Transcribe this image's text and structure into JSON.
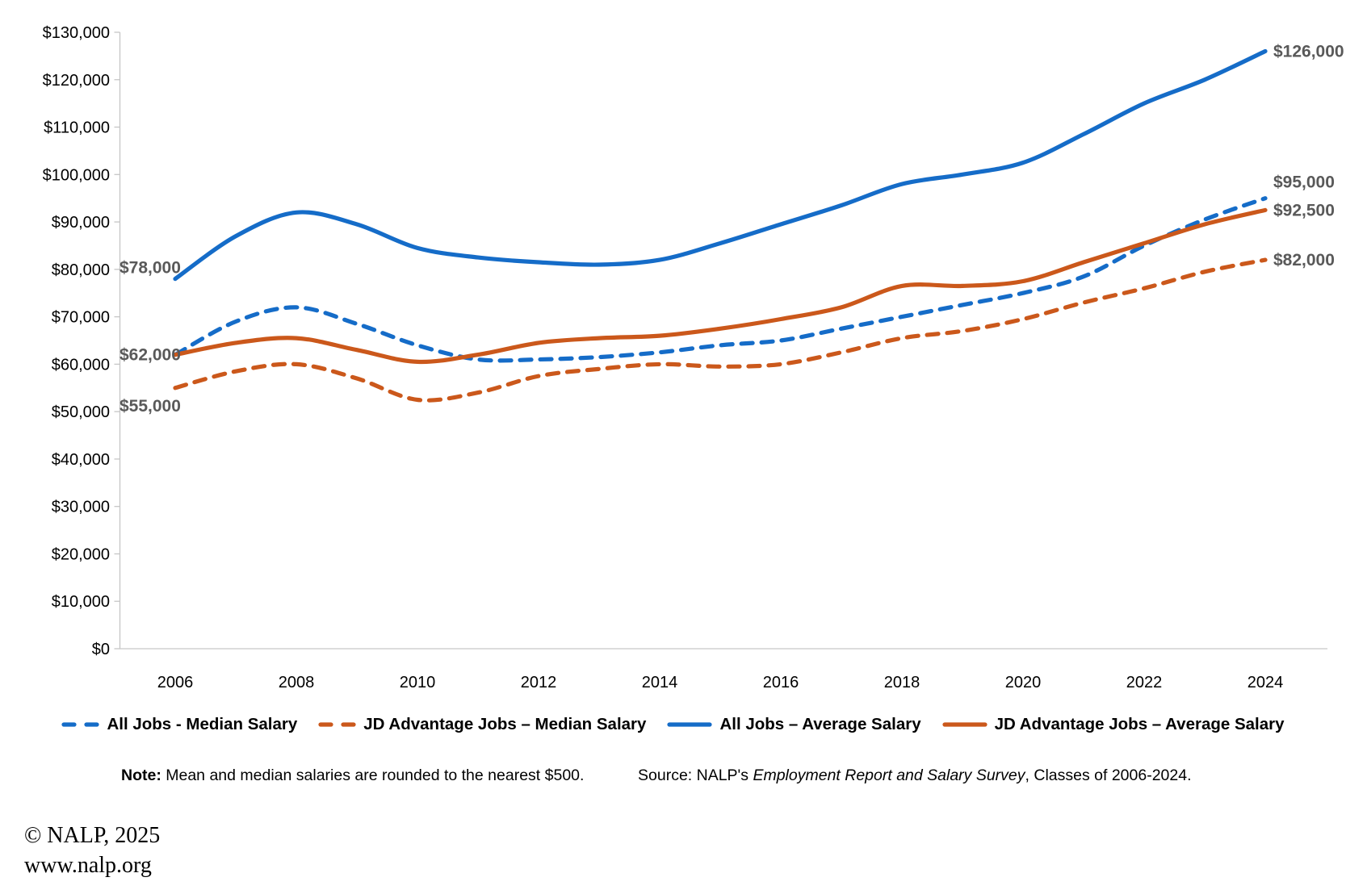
{
  "chart_data": {
    "type": "line",
    "title": "",
    "x": [
      2006,
      2007,
      2008,
      2009,
      2010,
      2011,
      2012,
      2013,
      2014,
      2015,
      2016,
      2017,
      2018,
      2019,
      2020,
      2021,
      2022,
      2023,
      2024
    ],
    "x_tick_labels": [
      "2006",
      "2008",
      "2010",
      "2012",
      "2014",
      "2016",
      "2018",
      "2020",
      "2022",
      "2024"
    ],
    "y_tick_labels": [
      "$0",
      "$10,000",
      "$20,000",
      "$30,000",
      "$40,000",
      "$50,000",
      "$60,000",
      "$70,000",
      "$80,000",
      "$90,000",
      "$100,000",
      "$110,000",
      "$120,000",
      "$130,000"
    ],
    "ylim": [
      0,
      130000
    ],
    "grid": false,
    "legend_position": "bottom",
    "series": [
      {
        "name": "All Jobs - Median Salary",
        "style": "dashed",
        "color": "#156CC8",
        "values": [
          62000,
          69000,
          72000,
          68500,
          64000,
          61000,
          61000,
          61500,
          62500,
          64000,
          65000,
          67500,
          70000,
          72500,
          75000,
          78500,
          85000,
          90500,
          95000
        ]
      },
      {
        "name": "JD Advantage Jobs – Median Salary",
        "style": "dashed",
        "color": "#CB581B",
        "values": [
          55000,
          58500,
          60000,
          57000,
          52500,
          54000,
          57500,
          59000,
          60000,
          59500,
          60000,
          62500,
          65500,
          67000,
          69500,
          73000,
          76000,
          79500,
          82000
        ]
      },
      {
        "name": "All Jobs – Average Salary",
        "style": "solid",
        "color": "#156CC8",
        "values": [
          78000,
          87000,
          92000,
          89500,
          84500,
          82500,
          81500,
          81000,
          82000,
          85500,
          89500,
          93500,
          98000,
          100000,
          102500,
          108500,
          115000,
          120000,
          126000
        ]
      },
      {
        "name": "JD Advantage Jobs – Average Salary",
        "style": "solid",
        "color": "#CB581B",
        "values": [
          62000,
          64500,
          65500,
          63000,
          60500,
          62000,
          64500,
          65500,
          66000,
          67500,
          69500,
          72000,
          76500,
          76500,
          77500,
          81500,
          85500,
          89500,
          92500
        ]
      }
    ],
    "point_labels": [
      {
        "series_index": 2,
        "position": "start",
        "text": "$78,000"
      },
      {
        "series_index": 3,
        "position": "start",
        "text": "$62,000"
      },
      {
        "series_index": 1,
        "position": "start",
        "text": "$55,000"
      },
      {
        "series_index": 2,
        "position": "end",
        "text": "$126,000"
      },
      {
        "series_index": 0,
        "position": "end",
        "text": "$95,000"
      },
      {
        "series_index": 3,
        "position": "end",
        "text": "$92,500"
      },
      {
        "series_index": 1,
        "position": "end",
        "text": "$82,000"
      }
    ]
  },
  "notes": {
    "note_label": "Note:",
    "note_text": " Mean and median salaries are rounded to the nearest $500.",
    "source_prefix": "Source: NALP's ",
    "source_italic": "Employment Report and Salary Survey",
    "source_suffix": ", Classes of 2006-2024."
  },
  "footer": {
    "copyright": "© NALP, 2025",
    "website": "www.nalp.org"
  }
}
